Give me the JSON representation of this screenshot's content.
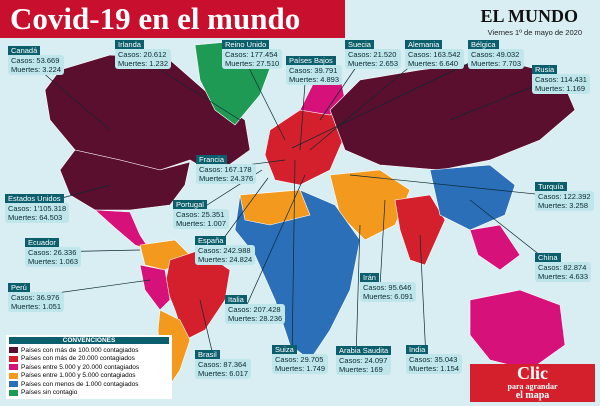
{
  "header": {
    "title": "Covid-19 en el mundo",
    "brand": "EL MUNDO",
    "date": "Viernes 1º de mayo de 2020"
  },
  "countries": [
    {
      "name": "Canadá",
      "cases": "Casos: 53.669",
      "deaths": "Muertes: 3.224"
    },
    {
      "name": "Irlanda",
      "cases": "Casos: 20.612",
      "deaths": "Muertes: 1.232"
    },
    {
      "name": "Reino Unido",
      "cases": "Casos: 177.454",
      "deaths": "Muertes: 27.510"
    },
    {
      "name": "Países Bajos",
      "cases": "Casos: 39.791",
      "deaths": "Muertes: 4.893"
    },
    {
      "name": "Suecia",
      "cases": "Casos: 21.520",
      "deaths": "Muertes: 2.653"
    },
    {
      "name": "Alemania",
      "cases": "Casos: 163.542",
      "deaths": "Muertes: 6.640"
    },
    {
      "name": "Bélgica",
      "cases": "Casos: 49.032",
      "deaths": "Muertes: 7.703"
    },
    {
      "name": "Rusia",
      "cases": "Casos: 114.431",
      "deaths": "Muertes: 1.169"
    },
    {
      "name": "Francia",
      "cases": "Casos: 167.178",
      "deaths": "Muertes: 24.376"
    },
    {
      "name": "Portugal",
      "cases": "Casos: 25.351",
      "deaths": "Muertes: 1.007"
    },
    {
      "name": "Estados Unidos",
      "cases": "Casos: 1'105.318",
      "deaths": "Muertes: 64.503"
    },
    {
      "name": "Turquía",
      "cases": "Casos: 122.392",
      "deaths": "Muertes: 3.258"
    },
    {
      "name": "Ecuador",
      "cases": "Casos: 26.336",
      "deaths": "Muertes: 1.063"
    },
    {
      "name": "España",
      "cases": "Casos: 242.988",
      "deaths": "Muertes: 24.824"
    },
    {
      "name": "China",
      "cases": "Casos: 82.874",
      "deaths": "Muertes: 4.633"
    },
    {
      "name": "Perú",
      "cases": "Casos: 36.976",
      "deaths": "Muertes: 1.051"
    },
    {
      "name": "Italia",
      "cases": "Casos: 207.428",
      "deaths": "Muertes: 28.236"
    },
    {
      "name": "Irán",
      "cases": "Casos: 95.646",
      "deaths": "Muertes: 6.091"
    },
    {
      "name": "Suiza",
      "cases": "Casos: 29.705",
      "deaths": "Muertes: 1.749"
    },
    {
      "name": "Arabia Saudita",
      "cases": "Casos: 24.097",
      "deaths": "Muertes: 169"
    },
    {
      "name": "Brasil",
      "cases": "Casos: 87.364",
      "deaths": "Muertes: 6.017"
    },
    {
      "name": "India",
      "cases": "Casos: 35.043",
      "deaths": "Muertes: 1.154"
    }
  ],
  "legend": {
    "title": "CONVENCIONES",
    "items": [
      {
        "label": "Países con más de 100.000 contagiados",
        "color": "#5a0f2e"
      },
      {
        "label": "Países con más de 20.000 contagiados",
        "color": "#d4202c"
      },
      {
        "label": "Países entre 5.000 y 20.000 contagiados",
        "color": "#d6127a"
      },
      {
        "label": "Países entre 1.000 y 5.000 contagiados",
        "color": "#f39a1e"
      },
      {
        "label": "Países con menos de 1.000 contagiados",
        "color": "#2a6fb8"
      },
      {
        "label": "Países sin contagio",
        "color": "#1f9a54"
      }
    ]
  },
  "button": {
    "title": "Clic",
    "line1": "para agrandar",
    "line2": "el mapa"
  }
}
